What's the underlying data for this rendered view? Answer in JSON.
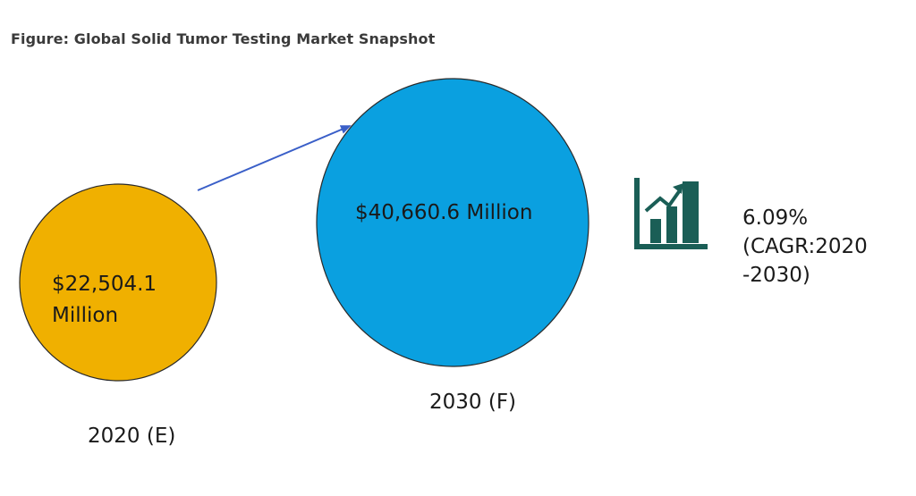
{
  "title": "Figure: Global Solid Tumor Testing Market Snapshot",
  "chart_data": {
    "type": "bubble",
    "title": "Figure: Global Solid Tumor Testing Market Snapshot",
    "unit": "Million",
    "points": [
      {
        "category": "2020 (E)",
        "value": 22504.1,
        "value_lines": [
          "$22,504.1",
          "Million"
        ],
        "color": "#f0b000"
      },
      {
        "category": "2030 (F)",
        "value": 40660.6,
        "value_lines": [
          "$40,660.6 Million"
        ],
        "color": "#0aa0e0"
      }
    ],
    "cagr": {
      "value": "6.09%",
      "lines": [
        "(CAGR:2020",
        "-2030)"
      ],
      "icon": "bar-chart-growth-icon",
      "icon_color": "#1a5e56"
    },
    "arrow_color": "#3a5fc8"
  }
}
